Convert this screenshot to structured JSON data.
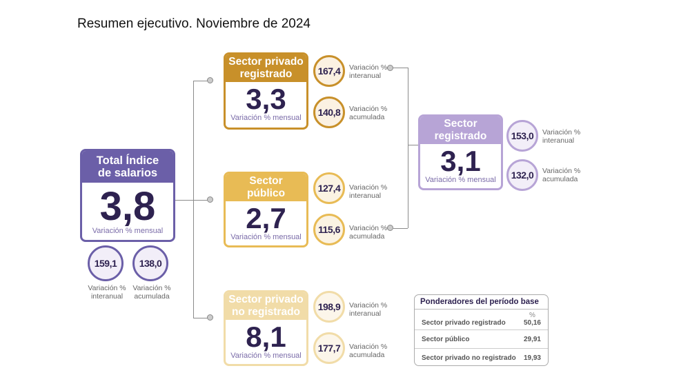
{
  "title": "Resumen ejecutivo. Noviembre de 2024",
  "common": {
    "mensual": "Variación % mensual",
    "interanual": [
      "Variación %",
      "interanual"
    ],
    "acumulada": [
      "Variación %",
      "acumulada"
    ]
  },
  "total": {
    "title": [
      "Total Índice",
      "de salarios"
    ],
    "value": "3,8",
    "interanual": "159,1",
    "acumulada": "138,0"
  },
  "privado_registrado": {
    "title": [
      "Sector privado",
      "registrado"
    ],
    "value": "3,3",
    "interanual": "167,4",
    "acumulada": "140,8"
  },
  "publico": {
    "title": [
      "Sector",
      "público"
    ],
    "value": "2,7",
    "interanual": "127,4",
    "acumulada": "115,6"
  },
  "privado_no_registrado": {
    "title": [
      "Sector privado",
      "no registrado"
    ],
    "value": "8,1",
    "interanual": "198,9",
    "acumulada": "177,7"
  },
  "registrado": {
    "title": [
      "Sector",
      "registrado"
    ],
    "value": "3,1",
    "interanual": "153,0",
    "acumulada": "132,0"
  },
  "ponderadores": {
    "title": "Ponderadores del período base",
    "unit": "%",
    "rows": [
      {
        "label": "Sector privado registrado",
        "value": "50,16"
      },
      {
        "label": "Sector público",
        "value": "29,91"
      },
      {
        "label": "Sector privado no registrado",
        "value": "19,93"
      }
    ]
  }
}
